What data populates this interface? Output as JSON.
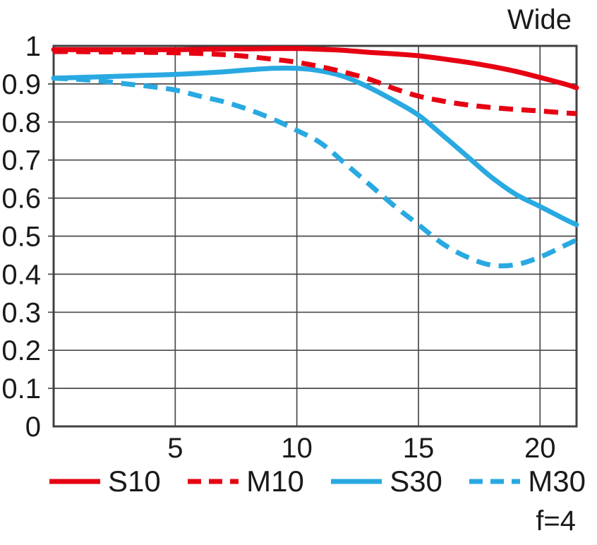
{
  "title": "Wide",
  "aperture_label": "f=4",
  "colors": {
    "red": "#e60012",
    "blue": "#29a9e1",
    "grid": "#4a4a4a",
    "axis": "#404040",
    "text": "#1a1a1a"
  },
  "legend": [
    {
      "label": "S10",
      "color": "#e60012",
      "style": "solid"
    },
    {
      "label": "M10",
      "color": "#e60012",
      "style": "dashed"
    },
    {
      "label": "S30",
      "color": "#29a9e1",
      "style": "solid"
    },
    {
      "label": "M30",
      "color": "#29a9e1",
      "style": "dashed"
    }
  ],
  "chart_data": {
    "type": "line",
    "title": "Wide",
    "annotation": "f=4",
    "xlabel": "",
    "ylabel": "",
    "xlim": [
      0,
      21.5
    ],
    "ylim": [
      0,
      1
    ],
    "x_ticks": [
      5,
      10,
      15,
      20
    ],
    "x_tick_labels": [
      "5",
      "10",
      "15",
      "20"
    ],
    "y_ticks": [
      0,
      0.1,
      0.2,
      0.3,
      0.4,
      0.5,
      0.6,
      0.7,
      0.8,
      0.9,
      1
    ],
    "y_tick_labels": [
      "0",
      "0.1",
      "0.2",
      "0.3",
      "0.4",
      "0.5",
      "0.6",
      "0.7",
      "0.8",
      "0.9",
      "1"
    ],
    "grid": true,
    "legend_position": "bottom",
    "x": [
      0,
      1,
      2,
      3,
      4,
      5,
      6,
      7,
      8,
      9,
      10,
      11,
      12,
      13,
      14,
      15,
      16,
      17,
      18,
      19,
      20,
      21,
      21.5
    ],
    "series": [
      {
        "name": "S10",
        "color": "#e60012",
        "style": "solid",
        "values": [
          0.99,
          0.99,
          0.99,
          0.99,
          0.99,
          0.99,
          0.991,
          0.992,
          0.992,
          0.993,
          0.993,
          0.991,
          0.988,
          0.983,
          0.979,
          0.974,
          0.966,
          0.957,
          0.946,
          0.933,
          0.917,
          0.9,
          0.89
        ]
      },
      {
        "name": "M10",
        "color": "#e60012",
        "style": "dashed",
        "values": [
          0.985,
          0.985,
          0.984,
          0.984,
          0.983,
          0.982,
          0.98,
          0.977,
          0.972,
          0.965,
          0.957,
          0.945,
          0.93,
          0.912,
          0.888,
          0.868,
          0.855,
          0.845,
          0.838,
          0.833,
          0.829,
          0.824,
          0.822
        ]
      },
      {
        "name": "S30",
        "color": "#29a9e1",
        "style": "solid",
        "values": [
          0.915,
          0.917,
          0.919,
          0.921,
          0.923,
          0.925,
          0.928,
          0.932,
          0.937,
          0.941,
          0.941,
          0.934,
          0.918,
          0.89,
          0.856,
          0.818,
          0.765,
          0.71,
          0.655,
          0.61,
          0.578,
          0.545,
          0.53
        ]
      },
      {
        "name": "M30",
        "color": "#29a9e1",
        "style": "dashed",
        "values": [
          0.915,
          0.912,
          0.907,
          0.9,
          0.893,
          0.884,
          0.868,
          0.853,
          0.833,
          0.808,
          0.778,
          0.744,
          0.69,
          0.635,
          0.58,
          0.53,
          0.48,
          0.445,
          0.424,
          0.425,
          0.445,
          0.475,
          0.49
        ]
      }
    ]
  }
}
